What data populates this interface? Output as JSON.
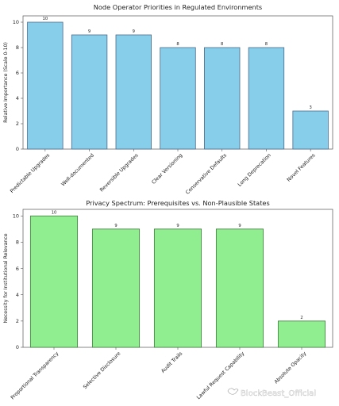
{
  "chart_data": [
    {
      "type": "bar",
      "title": "Node Operator Priorities in Regulated Environments",
      "xlabel": "",
      "ylabel": "Relative Importance (Scale 0-10)",
      "categories": [
        "Predictable Upgrades",
        "Well-documented",
        "Reversible Upgrades",
        "Clear Versioning",
        "Conservative Defaults",
        "Long Deprecation",
        "Novel Features"
      ],
      "values": [
        10,
        9,
        9,
        8,
        8,
        8,
        3
      ],
      "data_labels": [
        "10",
        "9",
        "9",
        "8",
        "8",
        "8",
        "3"
      ],
      "ylim": [
        0,
        10.5
      ],
      "yticks": [
        0,
        2,
        4,
        6,
        8,
        10
      ],
      "bar_color": "#87ceeb",
      "edge_color": "#4a6a8a",
      "grid": false,
      "legend": "none"
    },
    {
      "type": "bar",
      "title": "Privacy Spectrum: Prerequisites vs. Non-Plausible States",
      "xlabel": "",
      "ylabel": "Necessity for Institutional Relevance",
      "categories": [
        "Proportional Transparency",
        "Selective Disclosure",
        "Audit Trails",
        "Lawful Request Capability",
        "Absolute Opacity"
      ],
      "values": [
        10,
        9,
        9,
        9,
        2
      ],
      "data_labels": [
        "10",
        "9",
        "9",
        "9",
        "2"
      ],
      "ylim": [
        0,
        10.5
      ],
      "yticks": [
        0,
        2,
        4,
        6,
        8,
        10
      ],
      "bar_color": "#90ee90",
      "edge_color": "#3f7a3f",
      "grid": false,
      "legend": "none"
    }
  ],
  "watermark": {
    "icon": "bird-icon",
    "text": "BlockBeast_Official"
  }
}
